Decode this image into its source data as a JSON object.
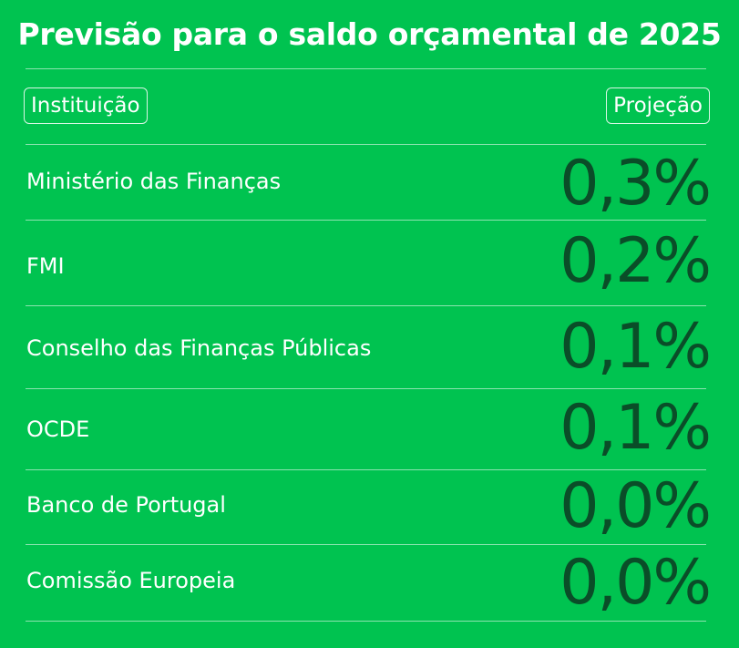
{
  "chart_data": {
    "type": "table",
    "title": "Previsão para o saldo orçamental de 2025",
    "columns": [
      "Instituição",
      "Projeção"
    ],
    "rows": [
      {
        "institution": "Ministério das Finanças",
        "projection_label": "0,3%",
        "value": 0.3
      },
      {
        "institution": "FMI",
        "projection_label": "0,2%",
        "value": 0.2
      },
      {
        "institution": "Conselho das Finanças Públicas",
        "projection_label": "0,1%",
        "value": 0.1
      },
      {
        "institution": "OCDE",
        "projection_label": "0,1%",
        "value": 0.1
      },
      {
        "institution": "Banco de Portugal",
        "projection_label": "0,0%",
        "value": 0.0
      },
      {
        "institution": "Comissão Europeia",
        "projection_label": "0,0%",
        "value": 0.0
      }
    ],
    "colors": {
      "background": "#00c350",
      "text": "#ffffff",
      "value_text": "#0a4d28"
    }
  }
}
